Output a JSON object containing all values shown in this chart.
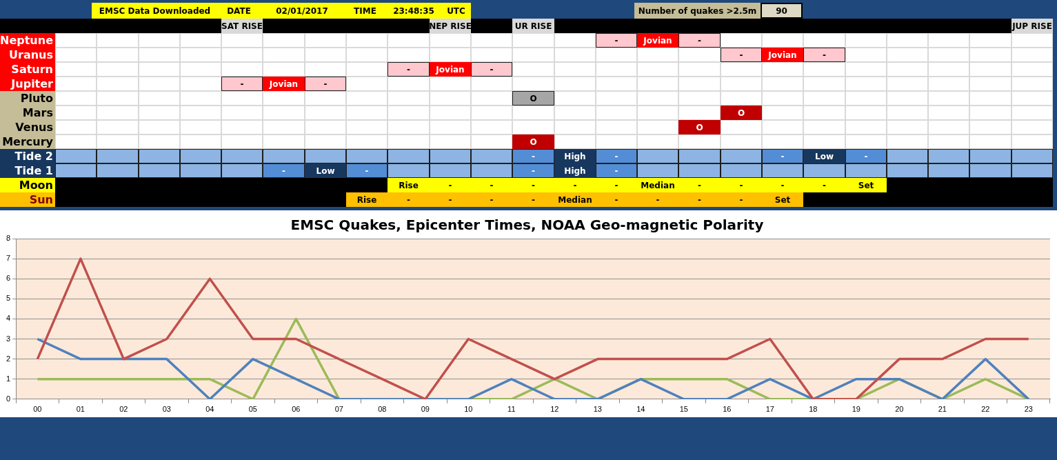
{
  "chart_data": [
    {
      "type": "other",
      "annotations": [
        "EMSC Data Downloaded",
        "DATE",
        "02/01/2017",
        "TIME",
        "23:48:35",
        "UTC",
        "Number of quakes >2.5m",
        "90"
      ],
      "y_categories": [
        null,
        "Neptune",
        "Uranus",
        "Saturn",
        "Jupiter",
        "Pluto",
        "Mars",
        "Venus",
        "Mercury",
        "Tide 2",
        "Tide 1",
        "Moon",
        "Sun"
      ],
      "cell_labels": [
        [
          null,
          null,
          null,
          null,
          "SAT RISE",
          null,
          null,
          null,
          null,
          "NEP RISE",
          null,
          "UR RISE",
          null,
          null,
          null,
          null,
          null,
          null,
          null,
          null,
          null,
          null,
          null,
          "JUP RISE"
        ],
        [
          null,
          null,
          null,
          null,
          null,
          null,
          null,
          null,
          null,
          null,
          null,
          null,
          null,
          "-",
          "Jovian",
          "-",
          null,
          null,
          null,
          null,
          null,
          null,
          null,
          null
        ],
        [
          null,
          null,
          null,
          null,
          null,
          null,
          null,
          null,
          null,
          null,
          null,
          null,
          null,
          null,
          null,
          null,
          "-",
          "Jovian",
          "-",
          null,
          null,
          null,
          null,
          null
        ],
        [
          null,
          null,
          null,
          null,
          null,
          null,
          null,
          null,
          "-",
          "Jovian",
          "-",
          null,
          null,
          null,
          null,
          null,
          null,
          null,
          null,
          null,
          null,
          null,
          null,
          null
        ],
        [
          null,
          null,
          null,
          null,
          "-",
          "Jovian",
          "-",
          null,
          null,
          null,
          null,
          null,
          null,
          null,
          null,
          null,
          null,
          null,
          null,
          null,
          null,
          null,
          null,
          null
        ],
        [
          null,
          null,
          null,
          null,
          null,
          null,
          null,
          null,
          null,
          null,
          null,
          "O",
          null,
          null,
          null,
          null,
          null,
          null,
          null,
          null,
          null,
          null,
          null,
          null
        ],
        [
          null,
          null,
          null,
          null,
          null,
          null,
          null,
          null,
          null,
          null,
          null,
          null,
          null,
          null,
          null,
          null,
          "O",
          null,
          null,
          null,
          null,
          null,
          null,
          null
        ],
        [
          null,
          null,
          null,
          null,
          null,
          null,
          null,
          null,
          null,
          null,
          null,
          null,
          null,
          null,
          null,
          "O",
          null,
          null,
          null,
          null,
          null,
          null,
          null,
          null
        ],
        [
          null,
          null,
          null,
          null,
          null,
          null,
          null,
          null,
          null,
          null,
          null,
          "O",
          null,
          null,
          null,
          null,
          null,
          null,
          null,
          null,
          null,
          null,
          null,
          null
        ],
        [
          null,
          null,
          null,
          null,
          null,
          null,
          null,
          null,
          null,
          null,
          null,
          "-",
          "High",
          "-",
          null,
          null,
          null,
          "-",
          "Low",
          "-",
          null,
          null,
          null,
          null
        ],
        [
          null,
          null,
          null,
          null,
          null,
          "-",
          "Low",
          "-",
          null,
          null,
          null,
          "-",
          "High",
          "-",
          null,
          null,
          null,
          null,
          null,
          null,
          null,
          null,
          null,
          null
        ],
        [
          null,
          null,
          null,
          null,
          null,
          null,
          null,
          null,
          "Rise",
          "-",
          "-",
          "-",
          "-",
          "-",
          "Median",
          "-",
          "-",
          "-",
          "-",
          "Set",
          null,
          null,
          null,
          null
        ],
        [
          null,
          null,
          null,
          null,
          null,
          null,
          null,
          "Rise",
          "-",
          "-",
          "-",
          "-",
          "Median",
          "-",
          "-",
          "-",
          "-",
          "Set",
          null,
          null,
          null,
          null,
          null,
          null
        ]
      ],
      "colors": [
        [
          "#000000",
          "#000000",
          "#000000",
          "#000000",
          "#d9d9d9",
          "#000000",
          "#000000",
          "#000000",
          "#000000",
          "#d9d9d9",
          "#000000",
          "#d9d9d9",
          "#000000",
          "#000000",
          "#000000",
          "#000000",
          "#000000",
          "#000000",
          "#000000",
          "#000000",
          "#000000",
          "#000000",
          "#000000",
          "#d9d9d9"
        ],
        [
          "#ffffff",
          "#ffffff",
          "#ffffff",
          "#ffffff",
          "#ffffff",
          "#ffffff",
          "#ffffff",
          "#ffffff",
          "#ffffff",
          "#ffffff",
          "#ffffff",
          "#ffffff",
          "#ffffff",
          "#ffc7ce",
          "#ff0000",
          "#ffc7ce",
          "#ffffff",
          "#ffffff",
          "#ffffff",
          "#ffffff",
          "#ffffff",
          "#ffffff",
          "#ffffff",
          "#ffffff"
        ],
        [
          "#ffffff",
          "#ffffff",
          "#ffffff",
          "#ffffff",
          "#ffffff",
          "#ffffff",
          "#ffffff",
          "#ffffff",
          "#ffffff",
          "#ffffff",
          "#ffffff",
          "#ffffff",
          "#ffffff",
          "#ffffff",
          "#ffffff",
          "#ffffff",
          "#ffc7ce",
          "#ff0000",
          "#ffc7ce",
          "#ffffff",
          "#ffffff",
          "#ffffff",
          "#ffffff",
          "#ffffff"
        ],
        [
          "#ffffff",
          "#ffffff",
          "#ffffff",
          "#ffffff",
          "#ffffff",
          "#ffffff",
          "#ffffff",
          "#ffffff",
          "#ffc7ce",
          "#ff0000",
          "#ffc7ce",
          "#ffffff",
          "#ffffff",
          "#ffffff",
          "#ffffff",
          "#ffffff",
          "#ffffff",
          "#ffffff",
          "#ffffff",
          "#ffffff",
          "#ffffff",
          "#ffffff",
          "#ffffff",
          "#ffffff"
        ],
        [
          "#ffffff",
          "#ffffff",
          "#ffffff",
          "#ffffff",
          "#ffc7ce",
          "#ff0000",
          "#ffc7ce",
          "#ffffff",
          "#ffffff",
          "#ffffff",
          "#ffffff",
          "#ffffff",
          "#ffffff",
          "#ffffff",
          "#ffffff",
          "#ffffff",
          "#ffffff",
          "#ffffff",
          "#ffffff",
          "#ffffff",
          "#ffffff",
          "#ffffff",
          "#ffffff",
          "#ffffff"
        ],
        [
          "#ffffff",
          "#ffffff",
          "#ffffff",
          "#ffffff",
          "#ffffff",
          "#ffffff",
          "#ffffff",
          "#ffffff",
          "#ffffff",
          "#ffffff",
          "#ffffff",
          "#a6a6a6",
          "#ffffff",
          "#ffffff",
          "#ffffff",
          "#ffffff",
          "#ffffff",
          "#ffffff",
          "#ffffff",
          "#ffffff",
          "#ffffff",
          "#ffffff",
          "#ffffff",
          "#ffffff"
        ],
        [
          "#ffffff",
          "#ffffff",
          "#ffffff",
          "#ffffff",
          "#ffffff",
          "#ffffff",
          "#ffffff",
          "#ffffff",
          "#ffffff",
          "#ffffff",
          "#ffffff",
          "#ffffff",
          "#ffffff",
          "#ffffff",
          "#ffffff",
          "#ffffff",
          "#c00000",
          "#ffffff",
          "#ffffff",
          "#ffffff",
          "#ffffff",
          "#ffffff",
          "#ffffff",
          "#ffffff"
        ],
        [
          "#ffffff",
          "#ffffff",
          "#ffffff",
          "#ffffff",
          "#ffffff",
          "#ffffff",
          "#ffffff",
          "#ffffff",
          "#ffffff",
          "#ffffff",
          "#ffffff",
          "#ffffff",
          "#ffffff",
          "#ffffff",
          "#ffffff",
          "#c00000",
          "#ffffff",
          "#ffffff",
          "#ffffff",
          "#ffffff",
          "#ffffff",
          "#ffffff",
          "#ffffff",
          "#ffffff"
        ],
        [
          "#ffffff",
          "#ffffff",
          "#ffffff",
          "#ffffff",
          "#ffffff",
          "#ffffff",
          "#ffffff",
          "#ffffff",
          "#ffffff",
          "#ffffff",
          "#ffffff",
          "#c00000",
          "#ffffff",
          "#ffffff",
          "#ffffff",
          "#ffffff",
          "#ffffff",
          "#ffffff",
          "#ffffff",
          "#ffffff",
          "#ffffff",
          "#ffffff",
          "#ffffff",
          "#ffffff"
        ],
        [
          "#8db4e2",
          "#8db4e2",
          "#8db4e2",
          "#8db4e2",
          "#8db4e2",
          "#8db4e2",
          "#8db4e2",
          "#8db4e2",
          "#8db4e2",
          "#8db4e2",
          "#8db4e2",
          "#538dd5",
          "#17375e",
          "#538dd5",
          "#8db4e2",
          "#8db4e2",
          "#8db4e2",
          "#538dd5",
          "#17375e",
          "#538dd5",
          "#8db4e2",
          "#8db4e2",
          "#8db4e2",
          "#8db4e2"
        ],
        [
          "#8db4e2",
          "#8db4e2",
          "#8db4e2",
          "#8db4e2",
          "#8db4e2",
          "#538dd5",
          "#17375e",
          "#538dd5",
          "#8db4e2",
          "#8db4e2",
          "#8db4e2",
          "#538dd5",
          "#17375e",
          "#538dd5",
          "#8db4e2",
          "#8db4e2",
          "#8db4e2",
          "#8db4e2",
          "#8db4e2",
          "#8db4e2",
          "#8db4e2",
          "#8db4e2",
          "#8db4e2",
          "#8db4e2"
        ],
        [
          "#000000",
          "#000000",
          "#000000",
          "#000000",
          "#000000",
          "#000000",
          "#000000",
          "#000000",
          "#ffff00",
          "#ffff00",
          "#ffff00",
          "#ffff00",
          "#ffff00",
          "#ffff00",
          "#ffff00",
          "#ffff00",
          "#ffff00",
          "#ffff00",
          "#ffff00",
          "#ffff00",
          "#000000",
          "#000000",
          "#000000",
          "#000000"
        ],
        [
          "#000000",
          "#000000",
          "#000000",
          "#000000",
          "#000000",
          "#000000",
          "#000000",
          "#ffc000",
          "#ffc000",
          "#ffc000",
          "#ffc000",
          "#ffc000",
          "#ffc000",
          "#ffc000",
          "#ffc000",
          "#ffc000",
          "#ffc000",
          "#ffc000",
          "#000000",
          "#000000",
          "#000000",
          "#000000",
          "#000000",
          "#000000"
        ]
      ]
    },
    {
      "type": "line",
      "title": "EMSC Quakes, Epicenter Times, NOAA Geo-magnetic Polarity",
      "categories": [
        "00",
        "01",
        "02",
        "03",
        "04",
        "05",
        "06",
        "07",
        "08",
        "09",
        "10",
        "11",
        "12",
        "13",
        "14",
        "15",
        "16",
        "17",
        "18",
        "19",
        "20",
        "21",
        "22",
        "23"
      ],
      "series": [
        {
          "color": "#c0504d",
          "values": [
            2,
            7,
            2,
            3,
            6,
            3,
            3,
            2,
            1,
            0,
            3,
            2,
            1,
            2,
            2,
            2,
            2,
            3,
            0,
            0,
            2,
            2,
            3,
            3
          ]
        },
        {
          "color": "#4f81bd",
          "values": [
            3,
            2,
            2,
            2,
            0,
            2,
            1,
            0,
            0,
            0,
            0,
            1,
            0,
            0,
            1,
            0,
            0,
            1,
            0,
            1,
            1,
            0,
            2,
            0
          ]
        },
        {
          "color": "#9bbb59",
          "values": [
            1,
            1,
            1,
            1,
            1,
            0,
            4,
            0,
            0,
            0,
            0,
            0,
            1,
            0,
            1,
            1,
            1,
            0,
            0,
            0,
            1,
            0,
            1,
            0
          ]
        }
      ],
      "ylim": [
        0,
        8
      ],
      "yticks": [
        0,
        1,
        2,
        3,
        4,
        5,
        6,
        7,
        8
      ],
      "grid": "y",
      "legend": false,
      "marker": "none",
      "line_style": "solid"
    }
  ]
}
